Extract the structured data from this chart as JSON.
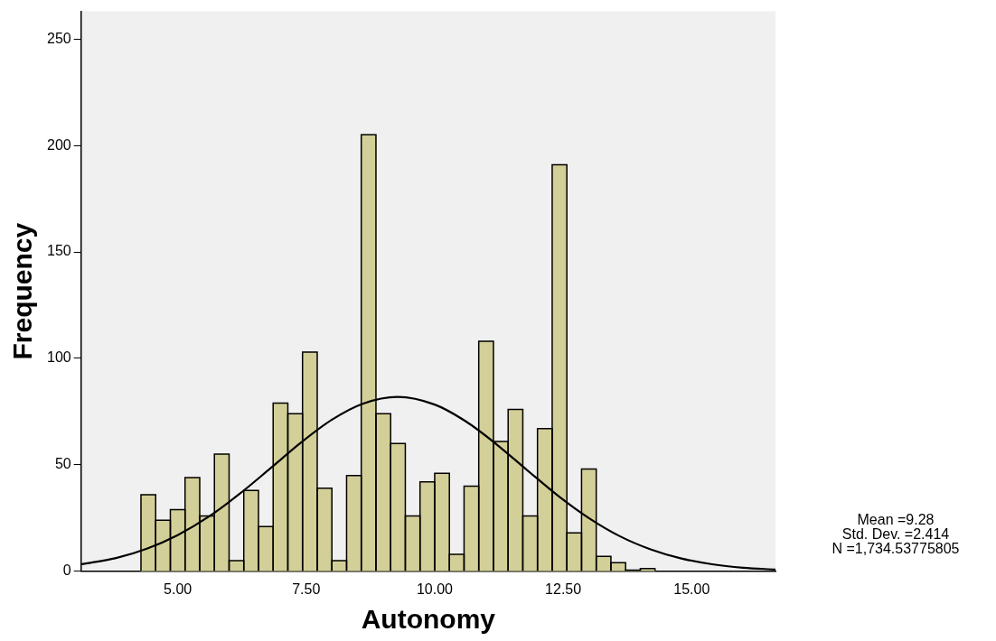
{
  "chart_data": {
    "type": "histogram",
    "xlabel": "Autonomy",
    "ylabel": "Frequency",
    "bins": [
      4.2857,
      4.5714,
      4.8571,
      5.1429,
      5.4286,
      5.7143,
      6.0,
      6.2857,
      6.5714,
      6.8571,
      7.1429,
      7.4286,
      7.7143,
      8.0,
      8.2857,
      8.5714,
      8.8571,
      9.1429,
      9.4286,
      9.7143,
      10.0,
      10.2857,
      10.5714,
      10.8571,
      11.1429,
      11.4286,
      11.7143,
      12.0,
      12.2857,
      12.5714,
      12.8571,
      13.1429,
      13.4286,
      13.7143,
      14.0,
      14.2857
    ],
    "values": [
      36,
      24,
      29,
      44,
      26,
      55,
      5,
      38,
      21,
      79,
      74,
      103,
      39,
      5,
      45,
      205,
      74,
      60,
      26,
      42,
      46,
      8,
      40,
      108,
      61,
      76,
      26,
      67,
      191,
      18,
      48,
      7,
      4,
      0.6,
      1.3
    ],
    "color": "#d3cf98",
    "series": [
      {
        "type": "line",
        "color": "#000000",
        "x": [
          3.12,
          3.8,
          4.4,
          5.0,
          5.6,
          6.2,
          6.8,
          7.4,
          8.0,
          8.6,
          9.28,
          10.0,
          10.6,
          11.2,
          11.8,
          12.4,
          13.0,
          13.6,
          14.2,
          14.8,
          15.4,
          16.0,
          16.63
        ],
        "values": [
          3.3,
          6.2,
          10.6,
          17.0,
          25.6,
          36.3,
          48.3,
          60.5,
          71.2,
          78.7,
          81.9,
          78.3,
          70.5,
          59.7,
          47.5,
          35.5,
          25.0,
          16.5,
          10.3,
          6.0,
          3.3,
          1.7,
          0.8
        ]
      }
    ],
    "marker": "none",
    "xlim": [
      3.12,
      16.63
    ],
    "ylim": [
      0,
      263
    ],
    "xticks": [
      {
        "value": 5,
        "label": "5.00"
      },
      {
        "value": 7.5,
        "label": "7.50"
      },
      {
        "value": 10,
        "label": "10.00"
      },
      {
        "value": 12.5,
        "label": "12.50"
      },
      {
        "value": 15,
        "label": "15.00"
      }
    ],
    "yticks": [
      0,
      50,
      100,
      150,
      200,
      250
    ],
    "annotations": [
      "Mean =9.28",
      "Std. Dev. =2.414",
      "N =1,734.53775805"
    ]
  }
}
